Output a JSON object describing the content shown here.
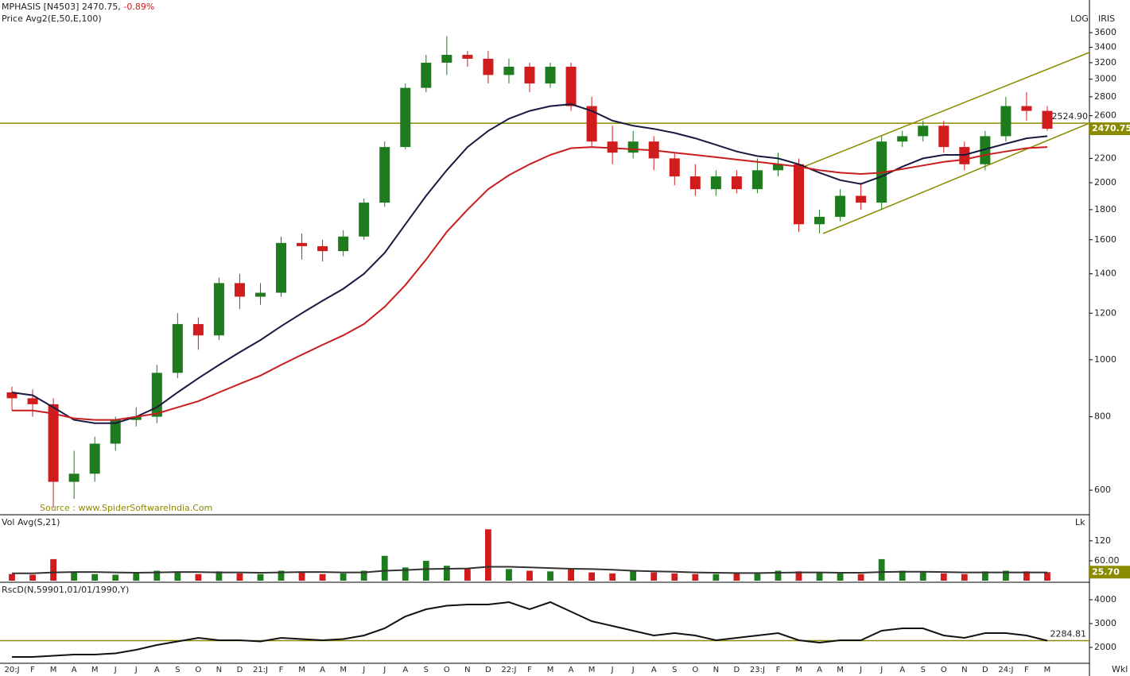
{
  "header": {
    "title": "MPHASIS [N4503] 2470.75,",
    "change": "-0.89%",
    "study": "Price  Avg2(E,50,E,100)",
    "scale": "LOG",
    "name": "IRIS",
    "period": "Wkl"
  },
  "chart_data": [
    {
      "type": "candlestick",
      "log_scale": true,
      "source": "Source : www.SpiderSoftwareIndia.Com",
      "categories": [
        "20:J",
        "F",
        "M",
        "A",
        "M",
        "J",
        "J",
        "A",
        "S",
        "O",
        "N",
        "D",
        "21:J",
        "F",
        "M",
        "A",
        "M",
        "J",
        "J",
        "A",
        "S",
        "O",
        "N",
        "D",
        "22:J",
        "F",
        "M",
        "A",
        "M",
        "J",
        "J",
        "A",
        "S",
        "O",
        "N",
        "D",
        "23:J",
        "F",
        "M",
        "A",
        "M",
        "J",
        "J",
        "A",
        "S",
        "O",
        "N",
        "D",
        "24:J",
        "F",
        "M"
      ],
      "open": [
        880,
        860,
        840,
        620,
        640,
        720,
        790,
        800,
        950,
        1150,
        1100,
        1350,
        1280,
        1300,
        1580,
        1560,
        1530,
        1620,
        1850,
        2300,
        2900,
        3200,
        3300,
        3250,
        3050,
        3150,
        2950,
        3150,
        2700,
        2350,
        2250,
        2350,
        2200,
        2050,
        1950,
        2050,
        1950,
        2100,
        2150,
        1700,
        1750,
        1900,
        1850,
        2350,
        2400,
        2500,
        2300,
        2150,
        2400,
        2700,
        2650
      ],
      "high": [
        900,
        890,
        860,
        700,
        740,
        800,
        830,
        980,
        1200,
        1180,
        1380,
        1400,
        1350,
        1620,
        1640,
        1600,
        1660,
        1880,
        2350,
        2950,
        3300,
        3550,
        3350,
        3350,
        3250,
        3200,
        3200,
        3200,
        2800,
        2500,
        2450,
        2400,
        2250,
        2150,
        2100,
        2100,
        2200,
        2250,
        2200,
        1800,
        1950,
        2000,
        2400,
        2450,
        2550,
        2550,
        2350,
        2450,
        2800,
        2850,
        2700
      ],
      "low": [
        820,
        800,
        560,
        580,
        620,
        700,
        770,
        780,
        930,
        1040,
        1080,
        1220,
        1240,
        1280,
        1480,
        1470,
        1500,
        1600,
        1820,
        2280,
        2850,
        3050,
        3150,
        2950,
        2950,
        2850,
        2900,
        2650,
        2300,
        2150,
        2200,
        2100,
        1980,
        1900,
        1900,
        1920,
        1920,
        2050,
        1650,
        1640,
        1720,
        1800,
        1800,
        2300,
        2350,
        2250,
        2100,
        2100,
        2350,
        2550,
        2450
      ],
      "close": [
        860,
        840,
        620,
        640,
        720,
        790,
        800,
        950,
        1150,
        1100,
        1350,
        1280,
        1300,
        1580,
        1560,
        1530,
        1620,
        1850,
        2300,
        2900,
        3200,
        3300,
        3250,
        3050,
        3150,
        2950,
        3150,
        2700,
        2350,
        2250,
        2350,
        2200,
        2050,
        1950,
        2050,
        1950,
        2100,
        2150,
        1700,
        1750,
        1900,
        1850,
        2350,
        2400,
        2500,
        2300,
        2150,
        2400,
        2700,
        2650,
        2470.75
      ],
      "up_color": "#1e7b1e",
      "down_color": "#d01c1c",
      "averages": [
        {
          "color": "#1a1a40",
          "values": [
            880,
            870,
            830,
            790,
            780,
            780,
            800,
            830,
            880,
            930,
            980,
            1030,
            1080,
            1140,
            1200,
            1260,
            1320,
            1400,
            1520,
            1700,
            1900,
            2100,
            2300,
            2450,
            2570,
            2650,
            2700,
            2720,
            2650,
            2550,
            2500,
            2470,
            2430,
            2380,
            2320,
            2260,
            2220,
            2200,
            2150,
            2080,
            2020,
            1990,
            2050,
            2130,
            2200,
            2230,
            2230,
            2280,
            2330,
            2380,
            2400
          ]
        },
        {
          "color": "#c81e1e",
          "values": [
            820,
            820,
            810,
            795,
            790,
            790,
            800,
            810,
            830,
            850,
            880,
            910,
            940,
            980,
            1020,
            1060,
            1100,
            1150,
            1230,
            1340,
            1480,
            1650,
            1800,
            1950,
            2060,
            2150,
            2230,
            2290,
            2300,
            2290,
            2280,
            2270,
            2250,
            2230,
            2210,
            2190,
            2170,
            2150,
            2130,
            2100,
            2080,
            2070,
            2080,
            2110,
            2140,
            2170,
            2190,
            2230,
            2260,
            2290,
            2300
          ]
        }
      ],
      "ylim": [
        545,
        3990
      ],
      "yticks": [
        600,
        800,
        1000,
        1200,
        1400,
        1600,
        1800,
        2000,
        2200,
        2600,
        2800,
        3000,
        3200,
        3400,
        3600
      ],
      "hline": {
        "value": 2524.9,
        "label": "2524.90"
      },
      "last_label": "2470.75",
      "line_color": "#8b8b00"
    },
    {
      "type": "bar",
      "title": "Vol  Avg(S,21)",
      "unit": "Lk",
      "values": [
        20,
        18,
        65,
        25,
        20,
        18,
        22,
        30,
        25,
        20,
        28,
        22,
        20,
        30,
        25,
        20,
        22,
        30,
        75,
        40,
        60,
        45,
        35,
        155,
        35,
        30,
        28,
        35,
        25,
        22,
        30,
        25,
        22,
        20,
        20,
        22,
        22,
        30,
        28,
        25,
        22,
        20,
        65,
        30,
        25,
        22,
        20,
        28,
        30,
        28,
        25.7
      ],
      "avg": [
        22,
        22,
        25,
        26,
        26,
        25,
        24,
        25,
        26,
        26,
        25,
        25,
        24,
        25,
        26,
        26,
        25,
        25,
        30,
        32,
        35,
        36,
        37,
        42,
        42,
        40,
        38,
        36,
        35,
        33,
        30,
        28,
        27,
        25,
        24,
        23,
        23,
        24,
        25,
        25,
        24,
        24,
        26,
        27,
        27,
        26,
        25,
        25,
        25,
        25,
        25
      ],
      "ylim": [
        0,
        194
      ],
      "yticks": [
        120,
        {
          "value": 60,
          "label": "60.00"
        }
      ],
      "last_label": "25.70"
    },
    {
      "type": "line",
      "title": "RscD(N,59901,01/01/1990,Y)",
      "color": "#111111",
      "values": [
        1600,
        1600,
        1650,
        1700,
        1700,
        1750,
        1900,
        2100,
        2250,
        2400,
        2300,
        2300,
        2250,
        2400,
        2350,
        2300,
        2350,
        2500,
        2800,
        3300,
        3600,
        3750,
        3800,
        3800,
        3900,
        3600,
        3900,
        3500,
        3100,
        2900,
        2700,
        2500,
        2600,
        2500,
        2300,
        2400,
        2500,
        2600,
        2300,
        2200,
        2300,
        2300,
        2700,
        2800,
        2800,
        2500,
        2400,
        2600,
        2600,
        2500,
        2284.81
      ],
      "ylim": [
        1333,
        4667
      ],
      "yticks": [
        2000,
        3000,
        4000
      ],
      "hline": {
        "value": 2284.81,
        "label": "2284.81"
      }
    }
  ]
}
